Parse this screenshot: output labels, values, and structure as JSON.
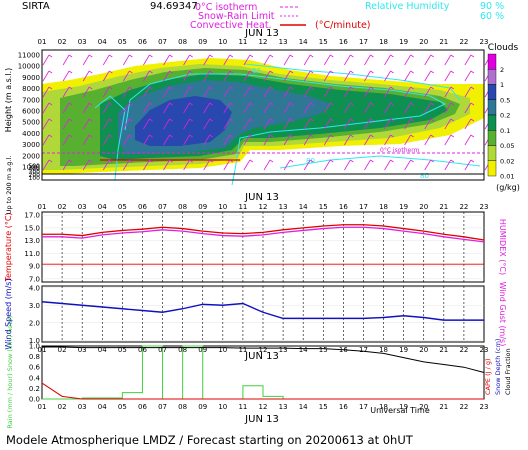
{
  "header": {
    "station": "SIRTA",
    "coords": "94.69347",
    "legend_isotherm": "0°C isotherm",
    "legend_snow_rain": "Snow-Rain Limit",
    "legend_convective": "Convective Heat.",
    "legend_convective_unit": "(°C/minute)",
    "legend_rh": "Relative Humidity",
    "legend_rh_90": "90 %",
    "legend_rh_60": "60 %"
  },
  "colors": {
    "magenta": "#e020e0",
    "cyan": "#30e8f0",
    "red": "#e00000",
    "blue": "#1010c0",
    "green": "#40d040",
    "black": "#000000"
  },
  "footer": {
    "title": "Modele Atmospherique LMDZ / Forecast starting on 20200613 at 0hUT",
    "universal_time": "Universal Time"
  },
  "chart_data": [
    {
      "type": "heatmap",
      "name": "clouds",
      "date_label": "JUN 13",
      "hours": [
        "01",
        "02",
        "03",
        "04",
        "05",
        "06",
        "07",
        "08",
        "09",
        "10",
        "11",
        "12",
        "13",
        "14",
        "15",
        "16",
        "17",
        "18",
        "19",
        "20",
        "21",
        "22",
        "23"
      ],
      "ylabel": "Height (m a.s.l.)",
      "yticks_upper": [
        11000,
        10000,
        9000,
        8000,
        7000,
        6000,
        5000,
        4000,
        3000,
        2000,
        1000
      ],
      "yticks_lower": [
        500,
        400,
        300,
        200,
        100
      ],
      "ylabel_lower": "Up to 200 m a.g.l.",
      "contour_label": "80",
      "scale_title": "Clouds",
      "scale_unit": "(g/kg)",
      "scale_labels": [
        "2",
        "1",
        "0.5",
        "0.2",
        "0.1",
        "0.05",
        "0.02",
        "0.01"
      ],
      "scale_colors": [
        "#e000e0",
        "#b070d0",
        "#2848b0",
        "#2e7896",
        "#0e9050",
        "#58b030",
        "#b0d838",
        "#f0f000"
      ]
    },
    {
      "type": "line",
      "name": "temperature",
      "date_label": "JUN 13",
      "ylabel": "Temperature (°C)",
      "ylabel_right": "HUMIDEX (°C)",
      "yticks": [
        "17.0",
        "15.0",
        "13.0",
        "11.0",
        "9.0",
        "7.0"
      ],
      "ylim": [
        6.5,
        17.5
      ],
      "x": [
        1,
        2,
        3,
        4,
        5,
        6,
        7,
        8,
        9,
        10,
        11,
        12,
        13,
        14,
        15,
        16,
        17,
        18,
        19,
        20,
        21,
        22,
        23
      ],
      "series": [
        {
          "values": [
            14.0,
            14.0,
            13.8,
            14.3,
            14.6,
            14.8,
            15.1,
            14.9,
            14.5,
            14.2,
            14.1,
            14.3,
            14.7,
            15.0,
            15.3,
            15.5,
            15.5,
            15.3,
            14.9,
            14.5,
            14.0,
            13.6,
            13.1
          ]
        },
        {
          "values": [
            13.6,
            13.6,
            13.4,
            13.9,
            14.2,
            14.4,
            14.7,
            14.5,
            14.1,
            13.8,
            13.7,
            13.9,
            14.3,
            14.6,
            14.9,
            15.1,
            15.1,
            14.9,
            14.5,
            14.1,
            13.6,
            13.2,
            12.8
          ]
        }
      ],
      "reference_line": 9.3
    },
    {
      "type": "line",
      "name": "wind",
      "ylabel": "Wind Speed (m/s)",
      "ylabel_right": "Wind Gust (m/s)",
      "yticks": [
        "4.0",
        "3.0",
        "2.0",
        "1.0"
      ],
      "ylim": [
        0.9,
        4.1
      ],
      "x": [
        1,
        2,
        3,
        4,
        5,
        6,
        7,
        8,
        9,
        10,
        11,
        12,
        13,
        14,
        15,
        16,
        17,
        18,
        19,
        20,
        21,
        22,
        23
      ],
      "values": [
        3.2,
        3.1,
        3.0,
        2.9,
        2.8,
        2.7,
        2.6,
        2.8,
        3.05,
        3.0,
        3.1,
        2.6,
        2.25,
        2.25,
        2.25,
        2.25,
        2.25,
        2.3,
        2.4,
        2.3,
        2.15,
        2.15,
        2.15
      ]
    },
    {
      "type": "area",
      "name": "precipitation",
      "date_label": "JUN 13",
      "hours": [
        "01",
        "02",
        "03",
        "04",
        "05",
        "06",
        "07",
        "08",
        "09",
        "10",
        "11",
        "12",
        "13",
        "14",
        "15",
        "16",
        "17",
        "18",
        "19",
        "20",
        "21",
        "22",
        "23"
      ],
      "ylabel": "Rain (mm / hour) Snow (cm / hour)",
      "ylabel_right_1": "CAPE (J / g)",
      "ylabel_right_2": "Snow Depth (cm)",
      "ylabel_right_3": "Cloud Fraction",
      "xlabel": "Universal Time",
      "yticks": [
        "1.0",
        "0.8",
        "0.6",
        "0.4",
        "0.2",
        "0.0"
      ],
      "ylim": [
        0,
        1.0
      ],
      "rain": [
        0,
        0,
        0.02,
        0.02,
        0.12,
        1.0,
        0,
        1.0,
        0,
        0,
        0.25,
        0.05,
        0,
        0,
        0,
        0,
        0,
        0,
        0,
        0,
        0,
        0,
        0
      ],
      "cloud_fraction": [
        0.98,
        0.98,
        0.97,
        0.97,
        0.97,
        0.97,
        0.97,
        0.97,
        0.97,
        0.97,
        0.96,
        0.96,
        0.96,
        0.95,
        0.95,
        0.93,
        0.9,
        0.86,
        0.78,
        0.7,
        0.65,
        0.6,
        0.5
      ],
      "cape": [
        0.3,
        0.05,
        0,
        0,
        0,
        0,
        0,
        0,
        0,
        0,
        0,
        0,
        0,
        0,
        0,
        0,
        0,
        0,
        0,
        0,
        0,
        0,
        0
      ]
    }
  ]
}
